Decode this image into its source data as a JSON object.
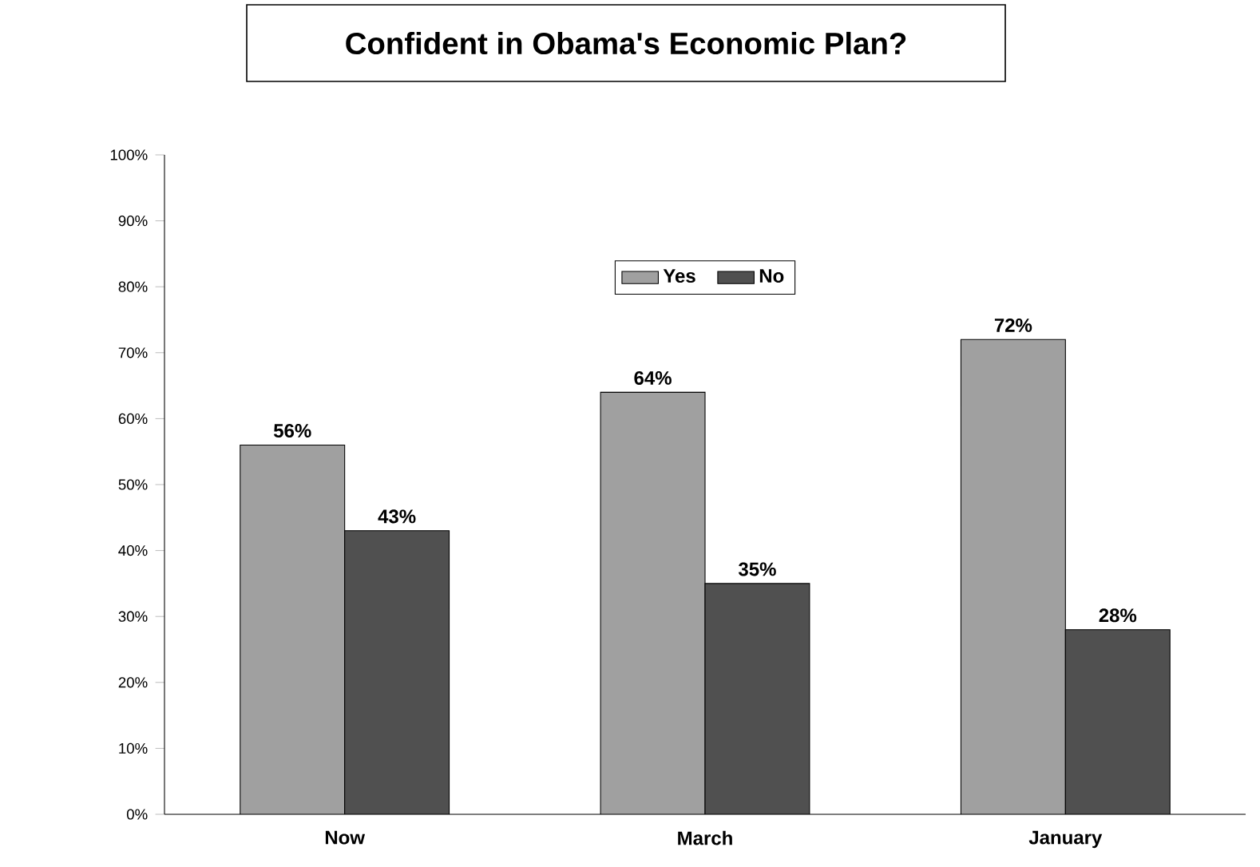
{
  "chart_data": {
    "type": "bar",
    "title": "Confident in Obama's Economic Plan?",
    "categories": [
      "Now",
      "March",
      "January"
    ],
    "series": [
      {
        "name": "Yes",
        "color": "#a0a0a0",
        "values": [
          56,
          64,
          72
        ],
        "value_labels": [
          "56%",
          "64%",
          "72%"
        ]
      },
      {
        "name": "No",
        "color": "#505050",
        "values": [
          43,
          35,
          28
        ],
        "value_labels": [
          "43%",
          "35%",
          "28%"
        ]
      }
    ],
    "ylim": [
      0,
      100
    ],
    "yticks": [
      {
        "value": 0,
        "label": "0%"
      },
      {
        "value": 10,
        "label": "10%"
      },
      {
        "value": 20,
        "label": "20%"
      },
      {
        "value": 30,
        "label": "30%"
      },
      {
        "value": 40,
        "label": "40%"
      },
      {
        "value": 50,
        "label": "50%"
      },
      {
        "value": 60,
        "label": "60%"
      },
      {
        "value": 70,
        "label": "70%"
      },
      {
        "value": 80,
        "label": "80%"
      },
      {
        "value": 90,
        "label": "90%"
      },
      {
        "value": 100,
        "label": "100%"
      }
    ],
    "legend": "top",
    "grid": false
  }
}
